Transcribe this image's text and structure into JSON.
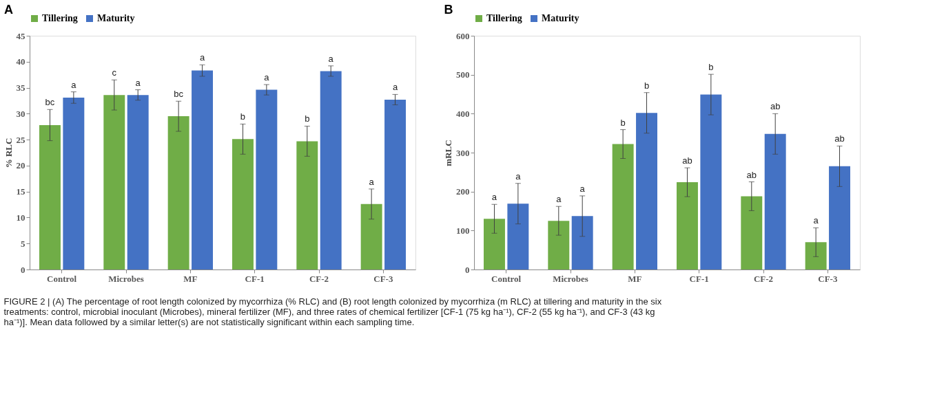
{
  "chart_data": [
    {
      "type": "bar",
      "title": "A",
      "ylabel": "% RLC",
      "categories": [
        "Control",
        "Microbes",
        "MF",
        "CF-1",
        "CF-2",
        "CF-3"
      ],
      "ylim": [
        0,
        45
      ],
      "yticks": [
        0,
        5,
        10,
        15,
        20,
        25,
        30,
        35,
        40,
        45
      ],
      "grid": false,
      "legend": "top",
      "series": [
        {
          "name": "Tillering",
          "color": "#70ad47",
          "values": [
            27.8,
            33.6,
            29.5,
            25.1,
            24.7,
            12.6
          ],
          "errors": [
            3.0,
            2.9,
            2.9,
            2.9,
            2.9,
            2.9
          ],
          "value_labels": [
            "bc",
            "c",
            "bc",
            "b",
            "b",
            "a"
          ]
        },
        {
          "name": "Maturity",
          "color": "#4472c4",
          "values": [
            33.1,
            33.6,
            38.3,
            34.6,
            38.2,
            32.7
          ],
          "errors": [
            1.1,
            1.0,
            1.1,
            1.0,
            1.0,
            1.0
          ],
          "value_labels": [
            "a",
            "a",
            "a",
            "a",
            "a",
            "a"
          ]
        }
      ]
    },
    {
      "type": "bar",
      "title": "B",
      "ylabel": "mRLC",
      "categories": [
        "Control",
        "Microbes",
        "MF",
        "CF-1",
        "CF-2",
        "CF-3"
      ],
      "ylim": [
        0,
        600
      ],
      "yticks": [
        0,
        100,
        200,
        300,
        400,
        500,
        600
      ],
      "grid": false,
      "legend": "top",
      "series": [
        {
          "name": "Tillering",
          "color": "#70ad47",
          "values": [
            130,
            125,
            322,
            224,
            188,
            70
          ],
          "errors": [
            37,
            37,
            37,
            37,
            37,
            37
          ],
          "value_labels": [
            "a",
            "a",
            "b",
            "ab",
            "ab",
            "a"
          ]
        },
        {
          "name": "Maturity",
          "color": "#4472c4",
          "values": [
            169,
            137,
            402,
            449,
            348,
            265
          ],
          "errors": [
            52,
            52,
            52,
            52,
            52,
            52
          ],
          "value_labels": [
            "a",
            "a",
            "b",
            "b",
            "ab",
            "ab"
          ]
        }
      ],
      "annotations": [
        "FIGURE 2 | (A) The percentage of root length colonized by mycorrhiza (% RLC) and (B) root length colonized by mycorrhiza (m RLC) at tillering and maturity in the six treatments: control, microbial inoculant (Microbes), mineral fertilizer (MF), and three rates of chemical fertilizer [CF-1 (75 kg ha⁻¹), CF-2 (55 kg ha⁻¹), and CF-3 (43 kg ha⁻¹)]. Mean data followed by a similar letter(s) are not statistically significant within each sampling time."
      ]
    }
  ]
}
